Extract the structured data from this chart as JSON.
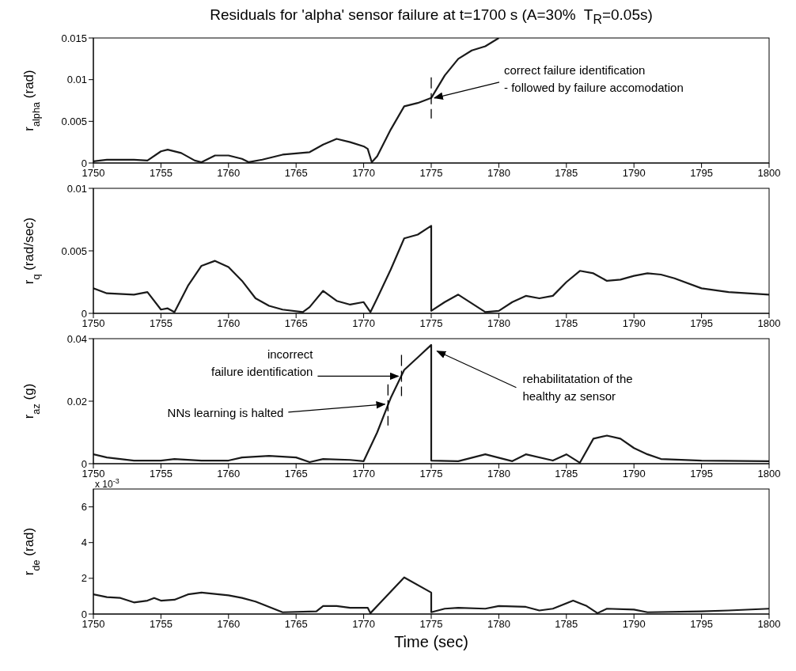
{
  "chart_data": [
    {
      "type": "line",
      "title": "Residuals for 'alpha' sensor failure at t=1700 s (A=30%  T$_{R}$=0.05s)",
      "ylabel": "r$_{alpha}$ (rad)",
      "xlim": [
        1750,
        1800
      ],
      "xticks": [
        1750,
        1755,
        1760,
        1765,
        1770,
        1775,
        1780,
        1785,
        1790,
        1795,
        1800
      ],
      "ylim": [
        0,
        0.015
      ],
      "yticks": [
        0,
        0.005,
        0.01,
        0.015
      ],
      "series": [
        {
          "color": "#1a1a1a",
          "x": [
            1750,
            1751,
            1753,
            1754,
            1755,
            1755.5,
            1756.5,
            1757.5,
            1758,
            1759,
            1760,
            1761,
            1761.5,
            1762.5,
            1764,
            1766,
            1767,
            1768,
            1769,
            1770,
            1770.3,
            1770.6,
            1771,
            1772,
            1773,
            1774,
            1775,
            1776,
            1777,
            1778,
            1779,
            1780
          ],
          "values": [
            0.0002,
            0.0004,
            0.0004,
            0.0003,
            0.0014,
            0.0016,
            0.0012,
            0.0003,
            0.0001,
            0.0009,
            0.0009,
            0.0005,
            0.0001,
            0.0004,
            0.001,
            0.0013,
            0.0022,
            0.0029,
            0.0025,
            0.002,
            0.0017,
            0.0001,
            0.0008,
            0.004,
            0.0068,
            0.0072,
            0.0078,
            0.0105,
            0.0125,
            0.0135,
            0.014,
            0.015
          ]
        }
      ],
      "annotations": [
        {
          "text": "correct failure identification\n- followed by failure accomodation",
          "x": 1775,
          "y": 0.0078
        }
      ],
      "ref_lines": [
        {
          "axis": "x",
          "value": 1775,
          "line_style": "dashed"
        }
      ]
    },
    {
      "type": "line",
      "ylabel": "r$_{q}$ (rad/sec)",
      "xlim": [
        1750,
        1800
      ],
      "xticks": [
        1750,
        1755,
        1760,
        1765,
        1770,
        1775,
        1780,
        1785,
        1790,
        1795,
        1800
      ],
      "ylim": [
        0,
        0.01
      ],
      "yticks": [
        0,
        0.005,
        0.01
      ],
      "series": [
        {
          "color": "#1a1a1a",
          "x": [
            1750,
            1751,
            1753,
            1754,
            1755,
            1755.5,
            1756,
            1757,
            1758,
            1759,
            1760,
            1761,
            1762,
            1763,
            1764,
            1765.5,
            1766,
            1767,
            1768,
            1769,
            1770,
            1770.5,
            1771,
            1772,
            1773,
            1774,
            1775,
            1775,
            1776,
            1777,
            1778,
            1779,
            1780,
            1781,
            1782,
            1783,
            1784,
            1785,
            1786,
            1787,
            1788,
            1789,
            1790,
            1791,
            1792,
            1793,
            1795,
            1797,
            1800
          ],
          "values": [
            0.002,
            0.0016,
            0.0015,
            0.0017,
            0.0003,
            0.0004,
            0.0001,
            0.0022,
            0.0038,
            0.0042,
            0.0037,
            0.0026,
            0.0012,
            0.0006,
            0.0003,
            0.0001,
            0.0005,
            0.0018,
            0.001,
            0.0007,
            0.0009,
            0.0001,
            0.0012,
            0.0035,
            0.006,
            0.0063,
            0.007,
            0.0002,
            0.0009,
            0.0015,
            0.0008,
            0.0001,
            0.0002,
            0.0009,
            0.0014,
            0.0012,
            0.0014,
            0.0025,
            0.0034,
            0.0032,
            0.0026,
            0.0027,
            0.003,
            0.0032,
            0.0031,
            0.0028,
            0.002,
            0.0017,
            0.0015
          ]
        }
      ]
    },
    {
      "type": "line",
      "ylabel": "r$_{az}$ (g)",
      "xlim": [
        1750,
        1800
      ],
      "xticks": [
        1750,
        1755,
        1760,
        1765,
        1770,
        1775,
        1780,
        1785,
        1790,
        1795,
        1800
      ],
      "ylim": [
        0,
        0.04
      ],
      "yticks": [
        0,
        0.02,
        0.04
      ],
      "series": [
        {
          "color": "#1a1a1a",
          "x": [
            1750,
            1751,
            1753,
            1755,
            1756,
            1758,
            1760,
            1761,
            1763,
            1765,
            1766,
            1767,
            1769,
            1770,
            1771,
            1772,
            1773,
            1774,
            1775,
            1775,
            1777,
            1779,
            1781,
            1782,
            1784,
            1785,
            1786,
            1787,
            1788,
            1789,
            1790,
            1791,
            1792,
            1795,
            1800
          ],
          "values": [
            0.003,
            0.002,
            0.001,
            0.001,
            0.0015,
            0.001,
            0.001,
            0.002,
            0.0025,
            0.002,
            0.0005,
            0.0015,
            0.0012,
            0.0008,
            0.01,
            0.021,
            0.03,
            0.034,
            0.038,
            0.001,
            0.0008,
            0.003,
            0.0008,
            0.003,
            0.001,
            0.003,
            0.0003,
            0.008,
            0.009,
            0.008,
            0.005,
            0.003,
            0.0015,
            0.001,
            0.0008
          ]
        }
      ],
      "annotations": [
        {
          "text": "incorrect\nfailure identification",
          "x": 1772.8,
          "y": 0.028
        },
        {
          "text": "NNs learning is halted",
          "x": 1771.8,
          "y": 0.019
        },
        {
          "text": "rehabilitatation of the\nhealthy az sensor",
          "x": 1775.2,
          "y": 0.036
        }
      ],
      "ref_lines": [
        {
          "axis": "x",
          "value": 1771.8,
          "line_style": "dashed"
        },
        {
          "axis": "x",
          "value": 1772.8,
          "line_style": "dashed"
        }
      ]
    },
    {
      "type": "line",
      "ylabel": "r$_{de}$ (rad)",
      "xlabel": "Time (sec)",
      "xlim": [
        1750,
        1800
      ],
      "xticks": [
        1750,
        1755,
        1760,
        1765,
        1770,
        1775,
        1780,
        1785,
        1790,
        1795,
        1800
      ],
      "ylim": [
        0,
        7
      ],
      "yticks": [
        0,
        2,
        4,
        6
      ],
      "series": [
        {
          "color": "#1a1a1a",
          "x": [
            1750,
            1751,
            1752,
            1753,
            1754,
            1754.5,
            1755,
            1756,
            1757,
            1758,
            1760,
            1761,
            1762,
            1763,
            1764,
            1766.5,
            1767,
            1768,
            1769,
            1770.3,
            1770.5,
            1773,
            1775,
            1775,
            1776,
            1777,
            1779,
            1780,
            1782,
            1783,
            1784,
            1785.5,
            1786.5,
            1787.3,
            1788,
            1790,
            1791,
            1795,
            1797,
            1800
          ],
          "values": [
            1.1,
            0.95,
            0.9,
            0.65,
            0.75,
            0.9,
            0.75,
            0.8,
            1.1,
            1.2,
            1.05,
            0.9,
            0.7,
            0.4,
            0.1,
            0.15,
            0.45,
            0.45,
            0.35,
            0.35,
            0.05,
            2.05,
            1.2,
            0.1,
            0.3,
            0.35,
            0.3,
            0.45,
            0.4,
            0.2,
            0.3,
            0.75,
            0.45,
            0.05,
            0.3,
            0.25,
            0.1,
            0.15,
            0.2,
            0.3
          ]
        }
      ],
      "annotations": [
        "x 10$^{-3}$"
      ]
    }
  ]
}
